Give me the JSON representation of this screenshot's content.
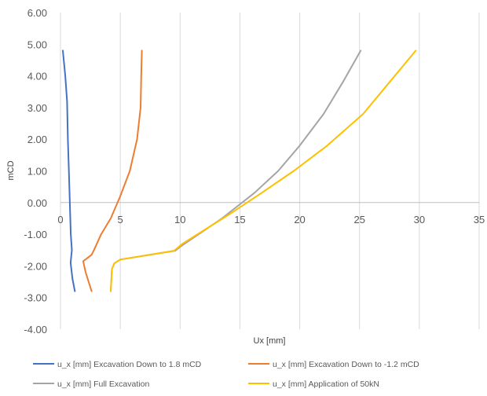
{
  "chart_data": {
    "type": "line",
    "title": "",
    "xlabel": "Ux [mm]",
    "ylabel": "mCD",
    "xlim": [
      0,
      35
    ],
    "ylim": [
      -4,
      6
    ],
    "x_ticks": [
      "0",
      "5",
      "10",
      "15",
      "20",
      "25",
      "30",
      "35"
    ],
    "y_ticks": [
      "6.00",
      "5.00",
      "4.00",
      "3.00",
      "2.00",
      "1.00",
      "0.00",
      "-1.00",
      "-2.00",
      "-3.00",
      "-4.00"
    ],
    "grid": "vertical",
    "legend_position": "bottom",
    "series": [
      {
        "name": "u_x [mm] Excavation Down to 1.8 mCD",
        "color": "#4472C4",
        "points": [
          [
            0.2,
            4.8
          ],
          [
            0.4,
            4.0
          ],
          [
            0.55,
            3.2
          ],
          [
            0.62,
            2.0
          ],
          [
            0.7,
            1.0
          ],
          [
            0.78,
            0.0
          ],
          [
            0.86,
            -1.0
          ],
          [
            0.95,
            -1.5
          ],
          [
            0.85,
            -1.9
          ],
          [
            1.0,
            -2.4
          ],
          [
            1.2,
            -2.8
          ]
        ]
      },
      {
        "name": "u_x [mm] Excavation Down to -1.2 mCD",
        "color": "#ED7D31",
        "points": [
          [
            6.8,
            4.8
          ],
          [
            6.75,
            4.0
          ],
          [
            6.7,
            3.0
          ],
          [
            6.4,
            2.0
          ],
          [
            5.8,
            1.0
          ],
          [
            5.0,
            0.2
          ],
          [
            4.2,
            -0.5
          ],
          [
            3.4,
            -1.0
          ],
          [
            2.8,
            -1.5
          ],
          [
            2.6,
            -1.65
          ],
          [
            1.9,
            -1.85
          ],
          [
            2.1,
            -2.2
          ],
          [
            2.6,
            -2.8
          ]
        ]
      },
      {
        "name": "u_x [mm] Full Excavation",
        "color": "#A5A5A5",
        "points": [
          [
            25.1,
            4.8
          ],
          [
            23.6,
            3.8
          ],
          [
            22.0,
            2.8
          ],
          [
            20.0,
            1.8
          ],
          [
            18.2,
            1.0
          ],
          [
            16.2,
            0.3
          ],
          [
            13.5,
            -0.5
          ],
          [
            10.0,
            -1.4
          ],
          [
            9.6,
            -1.52
          ],
          [
            5.0,
            -1.8
          ],
          [
            4.5,
            -1.92
          ],
          [
            4.3,
            -2.1
          ],
          [
            4.2,
            -2.8
          ]
        ]
      },
      {
        "name": "u_x [mm] Application of 50kN",
        "color": "#FFC000",
        "points": [
          [
            29.7,
            4.8
          ],
          [
            27.5,
            3.8
          ],
          [
            25.3,
            2.8
          ],
          [
            22.3,
            1.8
          ],
          [
            19.5,
            1.0
          ],
          [
            16.8,
            0.3
          ],
          [
            14.0,
            -0.4
          ],
          [
            10.2,
            -1.3
          ],
          [
            9.5,
            -1.52
          ],
          [
            5.0,
            -1.8
          ],
          [
            4.5,
            -1.92
          ],
          [
            4.3,
            -2.1
          ],
          [
            4.2,
            -2.8
          ]
        ]
      }
    ]
  }
}
